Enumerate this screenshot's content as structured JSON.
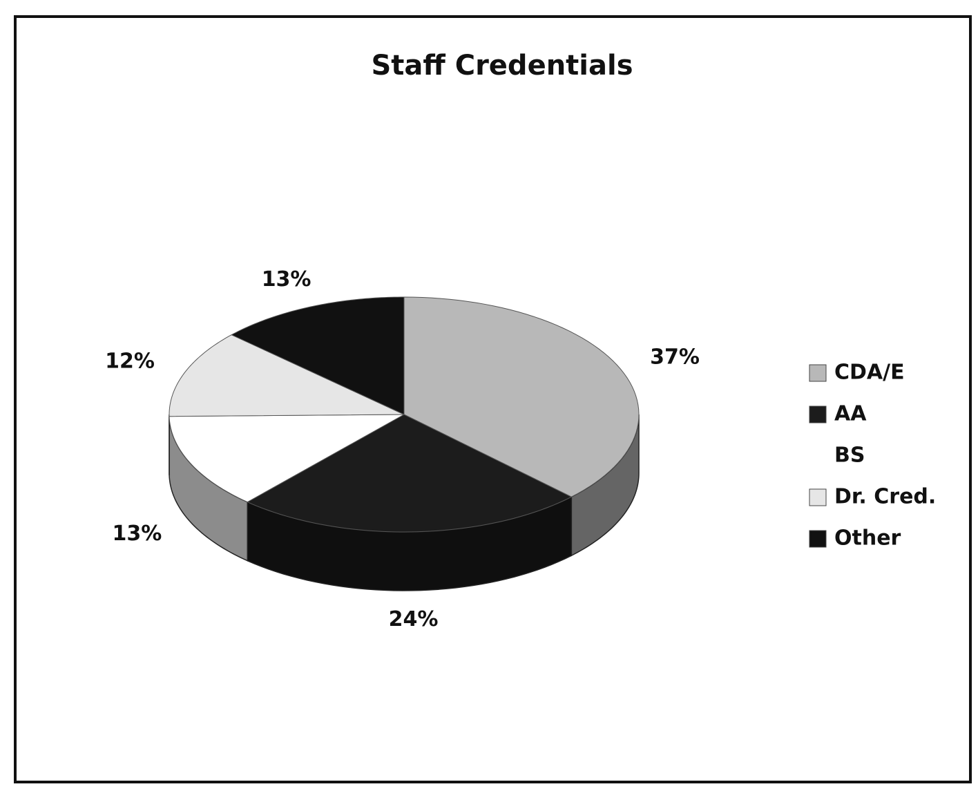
{
  "chart_data": {
    "type": "pie3d",
    "title": "Staff Credentials",
    "categories": [
      "CDA/E",
      "AA",
      "BS",
      "Dr. Cred.",
      "Other"
    ],
    "values": [
      37,
      24,
      13,
      12,
      13
    ],
    "value_labels": [
      "37%",
      "24%",
      "13%",
      "12%",
      "13%"
    ],
    "colors": [
      "#b8b8b8",
      "#1c1c1c",
      "#ffffff",
      "#e6e6e6",
      "#111111"
    ],
    "legend": "right"
  }
}
